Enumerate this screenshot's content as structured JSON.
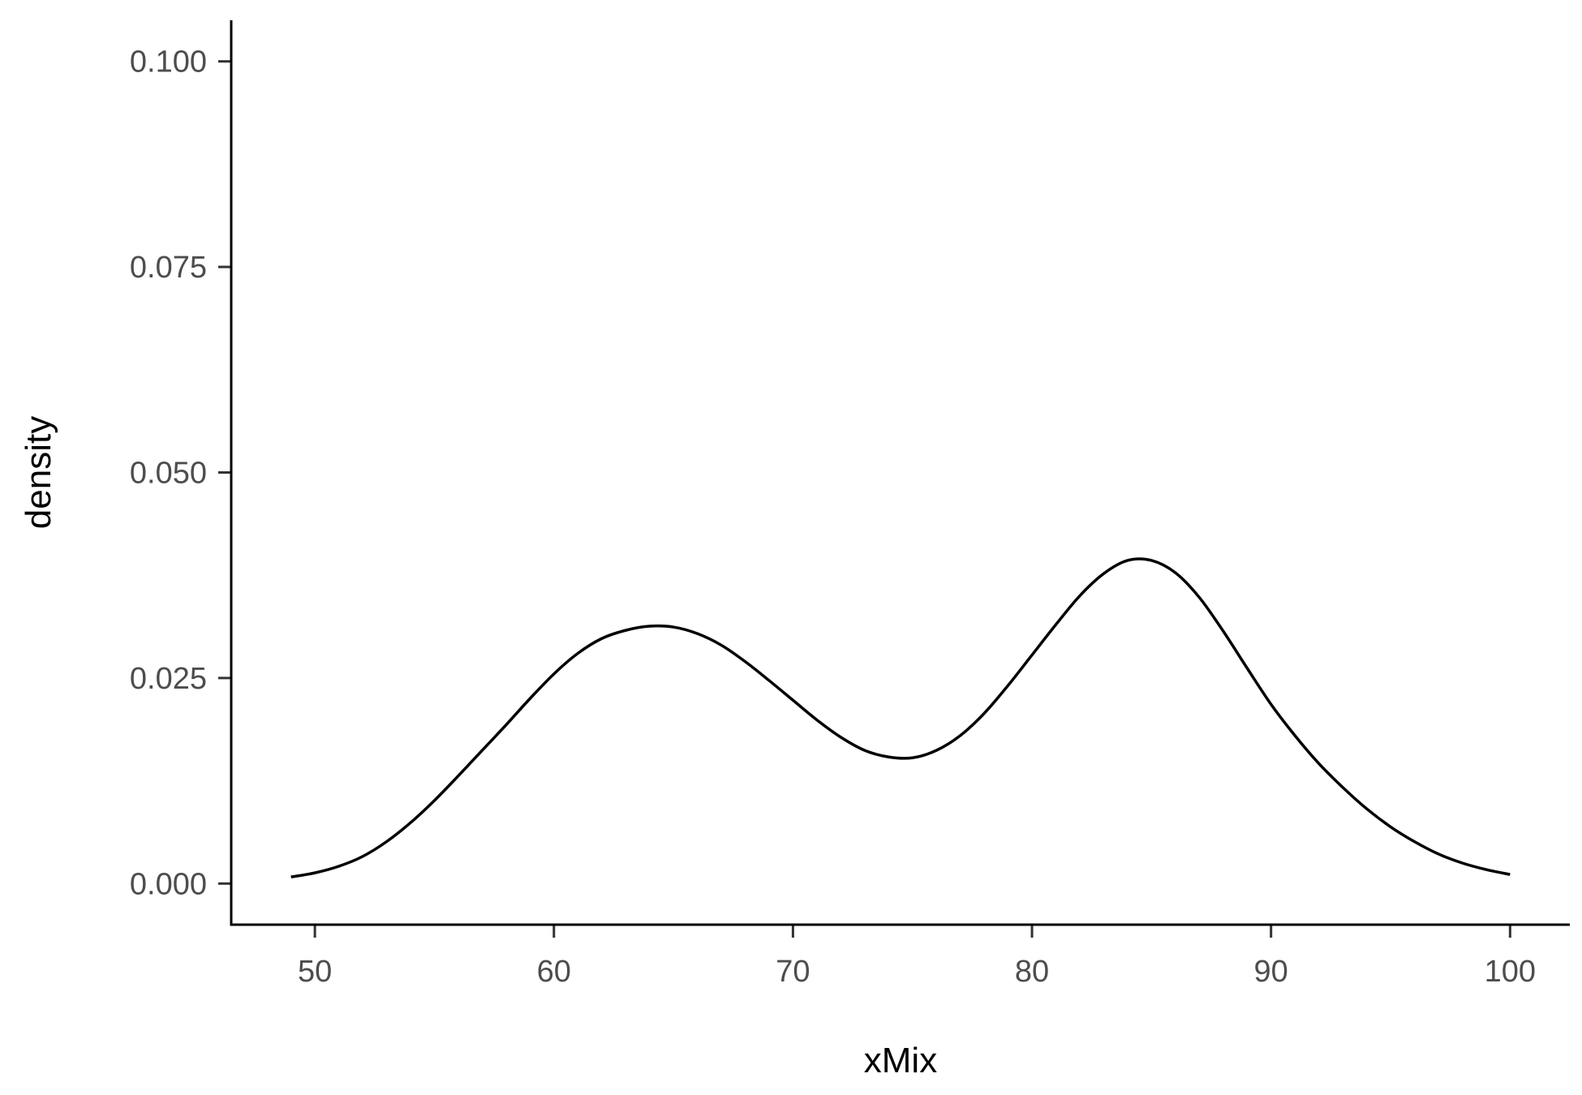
{
  "chart_data": {
    "type": "line",
    "title": "",
    "xlabel": "xMix",
    "ylabel": "density",
    "xlim": [
      46.5,
      102.5
    ],
    "ylim": [
      -0.005,
      0.105
    ],
    "grid": false,
    "x_ticks": [
      50,
      60,
      70,
      80,
      90,
      100
    ],
    "x_tick_labels": [
      "50",
      "60",
      "70",
      "80",
      "90",
      "100"
    ],
    "y_ticks": [
      0,
      0.025,
      0.05,
      0.075,
      0.1
    ],
    "y_tick_labels": [
      "0.000",
      "0.025",
      "0.050",
      "0.075",
      "0.100"
    ],
    "series": [
      {
        "color": "#000000",
        "x": [
          49,
          50,
          51,
          52,
          53,
          54,
          55,
          56,
          57,
          58,
          59,
          60,
          61,
          62,
          63,
          64,
          65,
          66,
          67,
          68,
          69,
          70,
          71,
          72,
          73,
          74,
          75,
          76,
          77,
          78,
          79,
          80,
          81,
          82,
          83,
          84,
          85,
          86,
          87,
          88,
          89,
          90,
          91,
          92,
          93,
          94,
          95,
          96,
          97,
          98,
          99,
          100
        ],
        "y": [
          0.0008,
          0.0013,
          0.0021,
          0.0033,
          0.0051,
          0.0074,
          0.0101,
          0.0131,
          0.0162,
          0.0193,
          0.0225,
          0.0255,
          0.028,
          0.0298,
          0.0308,
          0.0313,
          0.0312,
          0.0304,
          0.029,
          0.027,
          0.0247,
          0.0223,
          0.0199,
          0.0178,
          0.0162,
          0.0154,
          0.0153,
          0.0162,
          0.018,
          0.0207,
          0.0241,
          0.0278,
          0.0315,
          0.035,
          0.0377,
          0.0393,
          0.0393,
          0.0378,
          0.0348,
          0.0307,
          0.0262,
          0.0218,
          0.018,
          0.0146,
          0.0117,
          0.0091,
          0.0069,
          0.0051,
          0.0036,
          0.0025,
          0.0017,
          0.0011
        ]
      }
    ]
  }
}
